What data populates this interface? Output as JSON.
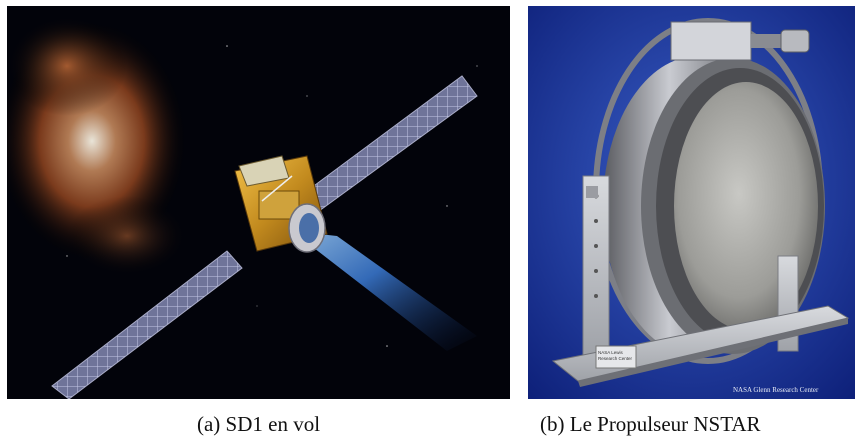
{
  "figure": {
    "panel_a": {
      "caption": "(a) SD1 en vol",
      "image_description_icon": "spacecraft-illustration"
    },
    "panel_b": {
      "caption": "(b) Le Propulseur NSTAR",
      "credit": "NASA Glenn Research Center",
      "plate_text_1": "NASA Lewis",
      "plate_text_2": "Research Center",
      "image_description_icon": "ion-thruster-photo"
    }
  }
}
